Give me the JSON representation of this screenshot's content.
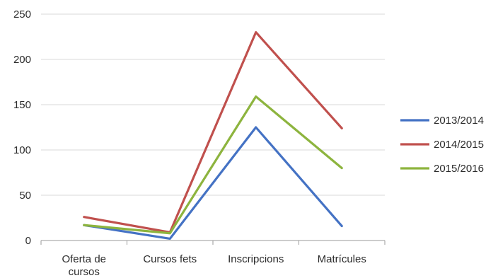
{
  "chart_data": {
    "type": "line",
    "categories": [
      "Oferta de cursos",
      "Cursos fets",
      "Inscripcions",
      "Matrícules"
    ],
    "category_lines": [
      [
        "Oferta de",
        "cursos"
      ],
      [
        "Cursos fets"
      ],
      [
        "Inscripcions"
      ],
      [
        "Matrícules"
      ]
    ],
    "ylim": [
      0,
      250
    ],
    "yticks": [
      "0",
      "50",
      "100",
      "150",
      "200",
      "250"
    ],
    "grid": true,
    "legend_position": "right",
    "series": [
      {
        "name": "2013/2014",
        "values": [
          17,
          2,
          125,
          16
        ],
        "color": "#4472C4"
      },
      {
        "name": "2014/2015",
        "values": [
          26,
          9,
          230,
          124
        ],
        "color": "#C0504D"
      },
      {
        "name": "2015/2016",
        "values": [
          17,
          8,
          159,
          80
        ],
        "color": "#8DB43E"
      }
    ]
  }
}
